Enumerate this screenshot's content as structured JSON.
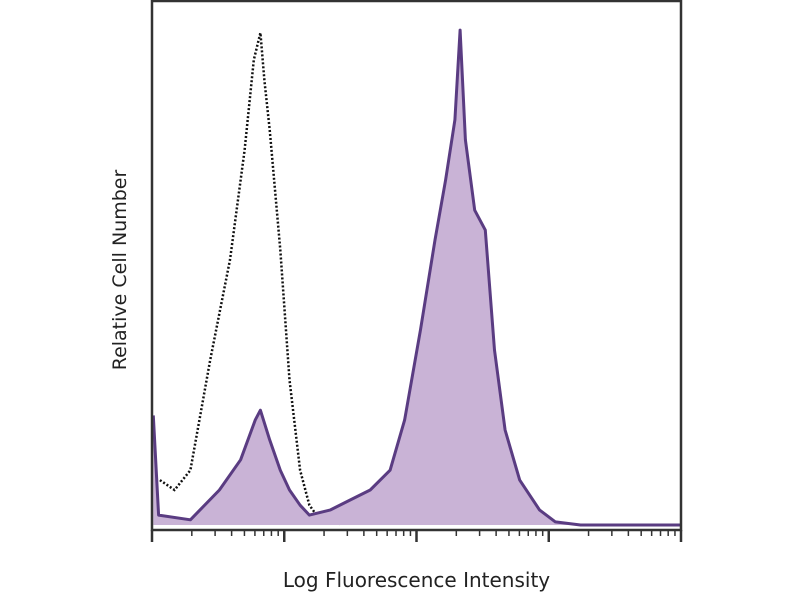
{
  "chart_data": {
    "type": "area",
    "title": "",
    "xlabel": "Log Fluorescence Intensity",
    "ylabel": "Relative Cell Number",
    "x_scale": "log (decades)",
    "xlim": [
      0,
      4
    ],
    "ylim": [
      0,
      100
    ],
    "grid": false,
    "x_major_ticks": [
      0,
      1,
      2,
      3,
      4
    ],
    "series": [
      {
        "style": "dotted-line",
        "color": "#111111",
        "x": [
          0.06,
          0.17,
          0.29,
          0.44,
          0.59,
          0.7,
          0.77,
          0.82,
          0.85,
          0.89,
          0.97,
          1.04,
          1.12,
          1.19,
          1.27,
          1.42
        ],
        "y": [
          8.6,
          6.7,
          10.5,
          31.6,
          50.8,
          71.8,
          89.1,
          94.3,
          85.2,
          75.7,
          52.7,
          27.8,
          10.5,
          3.8,
          1.0,
          0.2
        ]
      },
      {
        "style": "filled",
        "color": "#5a3c82",
        "fill": "#c9b3d6",
        "x": [
          0.01,
          0.05,
          0.29,
          0.51,
          0.67,
          0.78,
          0.82,
          0.89,
          0.97,
          1.04,
          1.12,
          1.19,
          1.35,
          1.5,
          1.65,
          1.8,
          1.91,
          2.03,
          2.14,
          2.22,
          2.29,
          2.33,
          2.37,
          2.44,
          2.52,
          2.59,
          2.67,
          2.78,
          2.93,
          3.05,
          3.24,
          4.0
        ],
        "y": [
          21,
          1.9,
          1.0,
          6.7,
          12.5,
          20.1,
          22.0,
          16.3,
          10.5,
          6.7,
          3.8,
          1.9,
          2.9,
          4.8,
          6.7,
          10.5,
          20.1,
          37.4,
          54.6,
          66.1,
          77.6,
          94.8,
          73.8,
          60.3,
          56.5,
          33.5,
          18.2,
          8.6,
          2.9,
          0.6,
          0,
          0
        ]
      }
    ]
  }
}
